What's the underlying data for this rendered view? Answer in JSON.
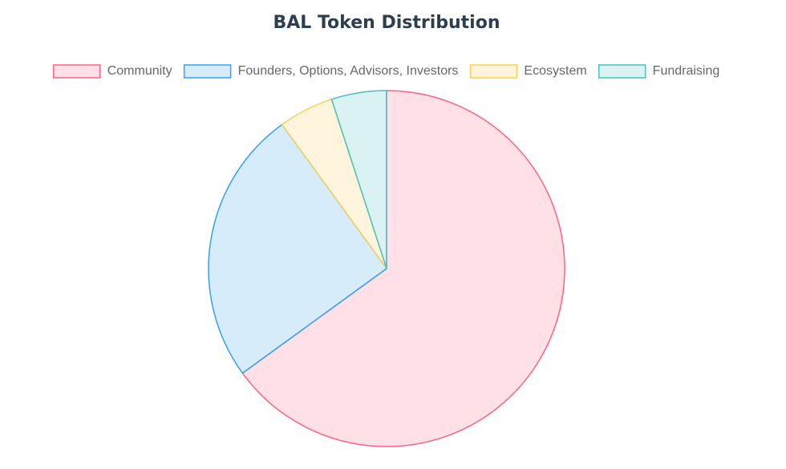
{
  "chart_data": {
    "type": "pie",
    "title": "BAL Token Distribution",
    "categories": [
      "Community",
      "Founders, Options, Advisors, Investors",
      "Ecosystem",
      "Fundraising"
    ],
    "values": [
      65,
      25,
      5,
      5
    ],
    "colors": [
      "rgba(255,99,132,0.2)",
      "rgba(54,162,235,0.2)",
      "rgba(255,206,86,0.2)",
      "rgba(75,192,192,0.2)"
    ],
    "border_colors": [
      "rgb(255,99,132)",
      "rgb(54,162,235)",
      "rgb(255,206,86)",
      "rgb(75,192,192)"
    ],
    "legend": "top"
  }
}
